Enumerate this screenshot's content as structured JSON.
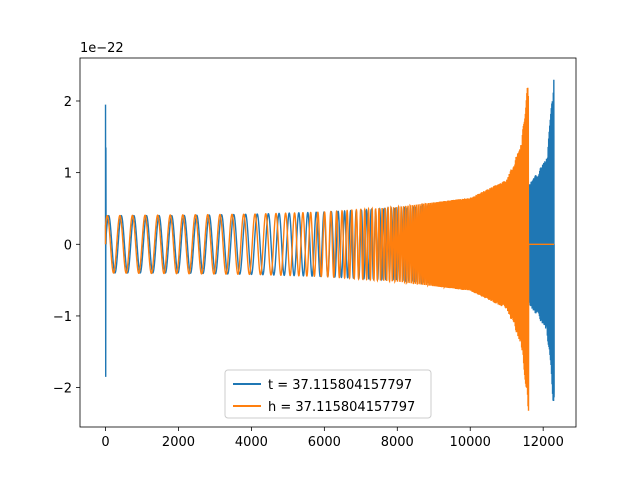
{
  "chart_data": {
    "type": "line",
    "title": "",
    "xlabel": "",
    "ylabel": "",
    "offset_text": "1e−22",
    "xlim": [
      -700,
      12900
    ],
    "ylim": [
      -2.55,
      2.6
    ],
    "grid": false,
    "legend_location": "lower center",
    "x_ticks": [
      0,
      2000,
      4000,
      6000,
      8000,
      10000,
      12000
    ],
    "y_ticks": [
      -2,
      -1,
      0,
      1,
      2
    ],
    "series": [
      {
        "name": "t = 37.115804157797",
        "color": "#1f77b4",
        "envelope": [
          {
            "x": 0,
            "amp": 1.9
          },
          {
            "x": 20,
            "amp": 0.4
          },
          {
            "x": 400,
            "amp": 0.4
          },
          {
            "x": 2000,
            "amp": 0.4
          },
          {
            "x": 4000,
            "amp": 0.42
          },
          {
            "x": 6000,
            "amp": 0.45
          },
          {
            "x": 8000,
            "amp": 0.5
          },
          {
            "x": 10000,
            "amp": 0.6
          },
          {
            "x": 11500,
            "amp": 0.75
          },
          {
            "x": 12100,
            "amp": 1.2
          },
          {
            "x": 12300,
            "amp": 2.35
          }
        ]
      },
      {
        "name": "h = 37.115804157797",
        "color": "#ff7f0e",
        "envelope": [
          {
            "x": 0,
            "amp": 0.4
          },
          {
            "x": 4000,
            "amp": 0.42
          },
          {
            "x": 6000,
            "amp": 0.45
          },
          {
            "x": 8000,
            "amp": 0.52
          },
          {
            "x": 10000,
            "amp": 0.65
          },
          {
            "x": 11000,
            "amp": 0.9
          },
          {
            "x": 11400,
            "amp": 1.4
          },
          {
            "x": 11600,
            "amp": 2.35
          }
        ]
      }
    ]
  }
}
